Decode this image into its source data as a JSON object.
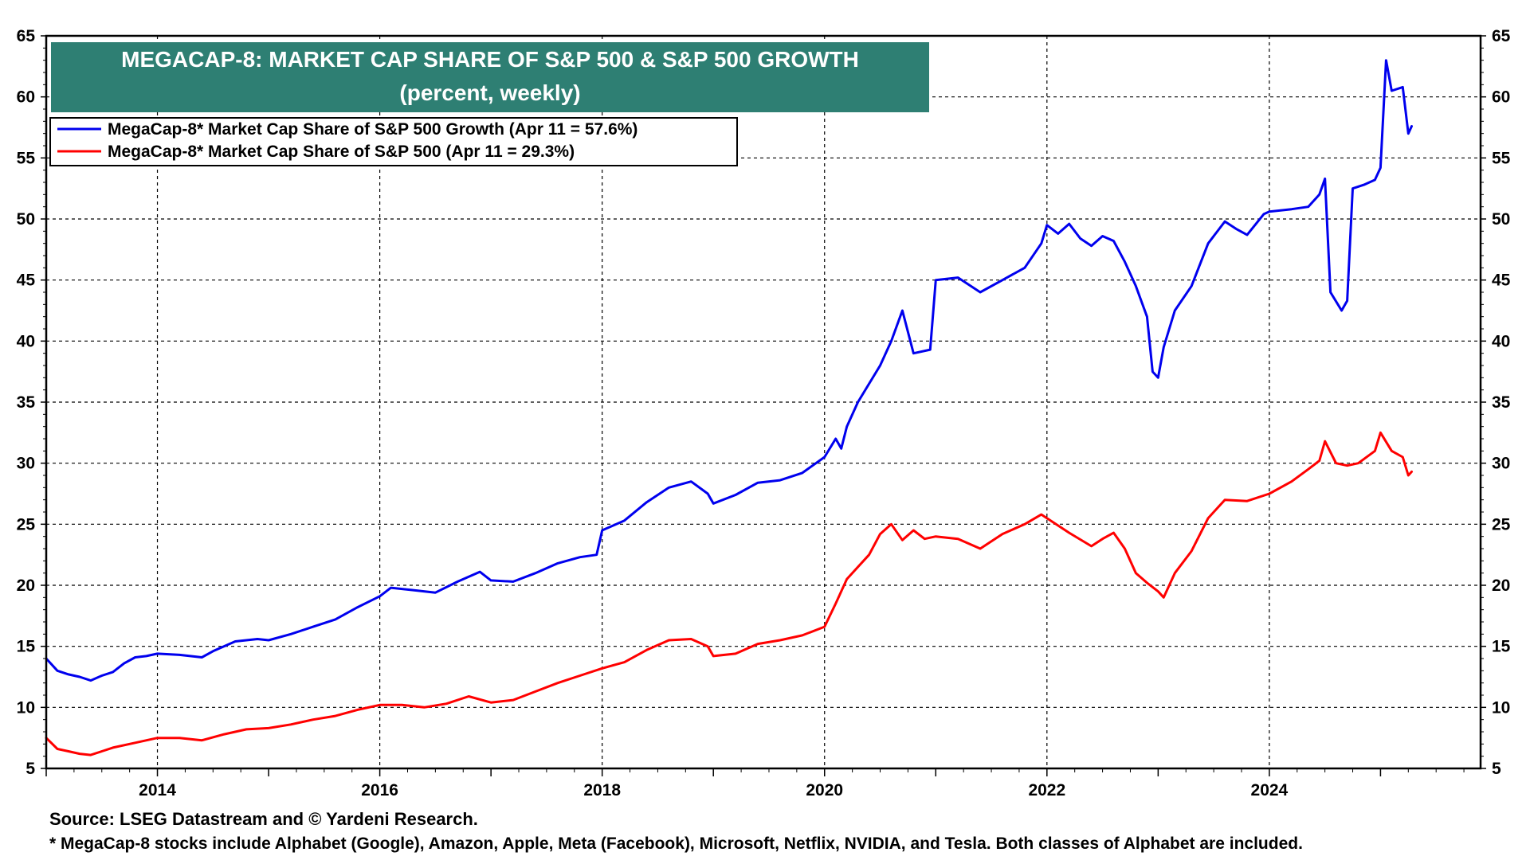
{
  "chart_data": {
    "type": "line",
    "title": "MEGACAP-8: MARKET CAP SHARE OF S&P 500 & S&P 500 GROWTH",
    "subtitle": "(percent, weekly)",
    "xlabel": "",
    "ylabel": "",
    "xlim": [
      2013.0,
      2025.9
    ],
    "ylim": [
      5,
      65
    ],
    "y_ticks": [
      5,
      10,
      15,
      20,
      25,
      30,
      35,
      40,
      45,
      50,
      55,
      60,
      65
    ],
    "x_ticks": [
      {
        "value": 2014,
        "label": "2014"
      },
      {
        "value": 2016,
        "label": "2016"
      },
      {
        "value": 2018,
        "label": "2018"
      },
      {
        "value": 2020,
        "label": "2020"
      },
      {
        "value": 2022,
        "label": "2022"
      },
      {
        "value": 2024,
        "label": "2024"
      }
    ],
    "grid": true,
    "legend_position": "top-left",
    "series": [
      {
        "name": "MegaCap-8* Market Cap Share of S&P 500 Growth (Apr 11 = 57.6%)",
        "color": "#0000ee",
        "x": [
          2013.0,
          2013.1,
          2013.2,
          2013.3,
          2013.4,
          2013.5,
          2013.6,
          2013.7,
          2013.8,
          2013.9,
          2014.0,
          2014.2,
          2014.4,
          2014.5,
          2014.7,
          2014.9,
          2015.0,
          2015.2,
          2015.4,
          2015.6,
          2015.8,
          2016.0,
          2016.1,
          2016.3,
          2016.5,
          2016.7,
          2016.9,
          2017.0,
          2017.2,
          2017.4,
          2017.6,
          2017.8,
          2017.95,
          2018.0,
          2018.2,
          2018.4,
          2018.6,
          2018.8,
          2018.95,
          2019.0,
          2019.2,
          2019.4,
          2019.6,
          2019.8,
          2020.0,
          2020.1,
          2020.15,
          2020.2,
          2020.3,
          2020.5,
          2020.6,
          2020.7,
          2020.8,
          2020.95,
          2021.0,
          2021.2,
          2021.4,
          2021.6,
          2021.8,
          2021.95,
          2022.0,
          2022.1,
          2022.2,
          2022.3,
          2022.4,
          2022.5,
          2022.6,
          2022.7,
          2022.8,
          2022.9,
          2022.95,
          2023.0,
          2023.05,
          2023.15,
          2023.3,
          2023.45,
          2023.6,
          2023.7,
          2023.8,
          2023.95,
          2024.0,
          2024.2,
          2024.35,
          2024.45,
          2024.5,
          2024.55,
          2024.65,
          2024.7,
          2024.75,
          2024.85,
          2024.95,
          2025.0,
          2025.05,
          2025.1,
          2025.2,
          2025.25,
          2025.28
        ],
        "values": [
          14.0,
          13.0,
          12.7,
          12.5,
          12.2,
          12.6,
          12.9,
          13.6,
          14.1,
          14.2,
          14.4,
          14.3,
          14.1,
          14.6,
          15.4,
          15.6,
          15.5,
          16.0,
          16.6,
          17.2,
          18.2,
          19.1,
          19.8,
          19.6,
          19.4,
          20.3,
          21.1,
          20.4,
          20.3,
          21.0,
          21.8,
          22.3,
          22.5,
          24.5,
          25.3,
          26.8,
          28.0,
          28.5,
          27.5,
          26.7,
          27.4,
          28.4,
          28.6,
          29.2,
          30.5,
          32.0,
          31.2,
          33.0,
          35.0,
          38.0,
          40.0,
          42.5,
          39.0,
          39.3,
          45.0,
          45.2,
          44.0,
          45.0,
          46.0,
          48.0,
          49.5,
          48.8,
          49.6,
          48.4,
          47.8,
          48.6,
          48.2,
          46.5,
          44.5,
          42.0,
          37.5,
          37.0,
          39.5,
          42.5,
          44.5,
          48.0,
          49.8,
          49.2,
          48.7,
          50.4,
          50.6,
          50.8,
          51.0,
          52.0,
          53.3,
          44.0,
          42.5,
          43.3,
          52.5,
          52.8,
          53.2,
          54.2,
          63.0,
          60.5,
          60.8,
          57.0,
          57.6
        ]
      },
      {
        "name": "MegaCap-8* Market Cap Share of S&P 500  (Apr 11 = 29.3%)",
        "color": "#ff0000",
        "x": [
          2013.0,
          2013.1,
          2013.2,
          2013.3,
          2013.4,
          2013.5,
          2013.6,
          2013.8,
          2014.0,
          2014.2,
          2014.4,
          2014.6,
          2014.8,
          2015.0,
          2015.2,
          2015.4,
          2015.6,
          2015.8,
          2016.0,
          2016.2,
          2016.4,
          2016.6,
          2016.8,
          2017.0,
          2017.2,
          2017.4,
          2017.6,
          2017.8,
          2018.0,
          2018.2,
          2018.4,
          2018.6,
          2018.8,
          2018.95,
          2019.0,
          2019.2,
          2019.4,
          2019.6,
          2019.8,
          2020.0,
          2020.1,
          2020.2,
          2020.3,
          2020.4,
          2020.5,
          2020.6,
          2020.7,
          2020.8,
          2020.9,
          2021.0,
          2021.2,
          2021.4,
          2021.6,
          2021.8,
          2021.95,
          2022.0,
          2022.2,
          2022.4,
          2022.5,
          2022.6,
          2022.7,
          2022.8,
          2022.9,
          2023.0,
          2023.05,
          2023.15,
          2023.3,
          2023.45,
          2023.6,
          2023.8,
          2024.0,
          2024.2,
          2024.35,
          2024.45,
          2024.5,
          2024.6,
          2024.7,
          2024.8,
          2024.95,
          2025.0,
          2025.1,
          2025.2,
          2025.25,
          2025.28
        ],
        "values": [
          7.5,
          6.6,
          6.4,
          6.2,
          6.1,
          6.4,
          6.7,
          7.1,
          7.5,
          7.5,
          7.3,
          7.8,
          8.2,
          8.3,
          8.6,
          9.0,
          9.3,
          9.8,
          10.2,
          10.2,
          10.0,
          10.3,
          10.9,
          10.4,
          10.6,
          11.3,
          12.0,
          12.6,
          13.2,
          13.7,
          14.7,
          15.5,
          15.6,
          15.0,
          14.2,
          14.4,
          15.2,
          15.5,
          15.9,
          16.6,
          18.5,
          20.5,
          21.5,
          22.5,
          24.2,
          25.0,
          23.7,
          24.5,
          23.8,
          24.0,
          23.8,
          23.0,
          24.2,
          25.0,
          25.8,
          25.5,
          24.3,
          23.2,
          23.8,
          24.3,
          23.0,
          21.0,
          20.2,
          19.5,
          19.0,
          21.0,
          22.8,
          25.5,
          27.0,
          26.9,
          27.5,
          28.5,
          29.5,
          30.2,
          31.8,
          30.0,
          29.8,
          30.0,
          31.0,
          32.5,
          31.0,
          30.5,
          29.0,
          29.3
        ]
      }
    ]
  },
  "footer": {
    "source": "Source: LSEG Datastream and © Yardeni Research.",
    "note": "* MegaCap-8 stocks include Alphabet (Google), Amazon, Apple, Meta (Facebook), Microsoft, Netflix, NVIDIA, and Tesla. Both classes of Alphabet are included."
  },
  "colors": {
    "title_bg": "#2e7f73",
    "grid": "#000000"
  }
}
